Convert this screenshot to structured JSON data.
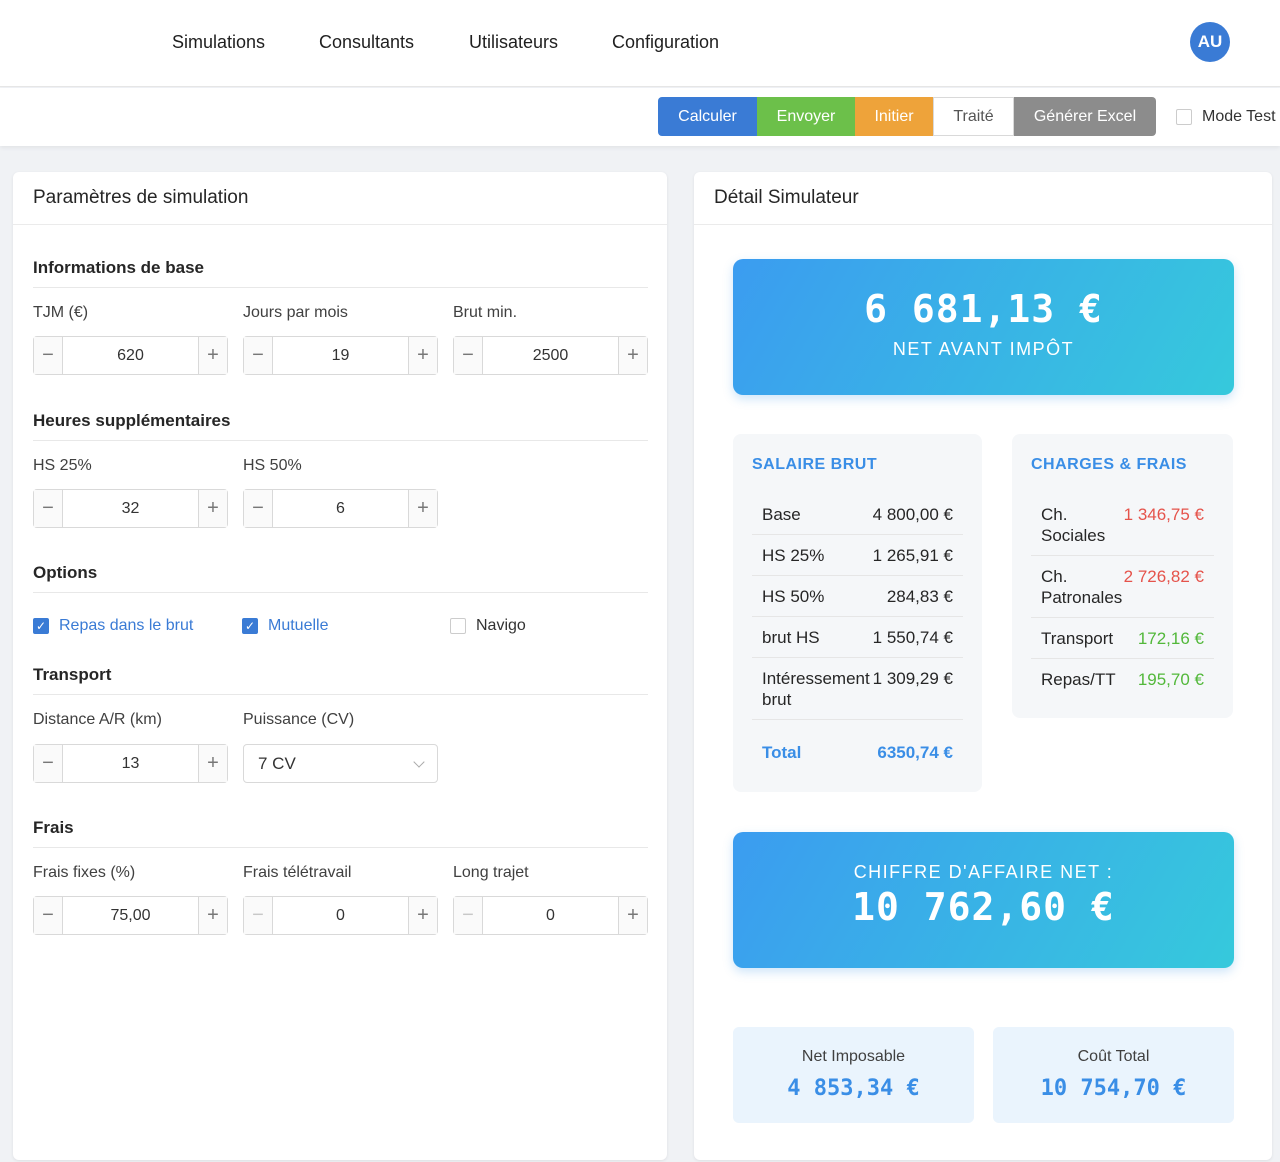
{
  "nav": {
    "items": [
      "Simulations",
      "Consultants",
      "Utilisateurs",
      "Configuration"
    ],
    "avatar": "AU"
  },
  "toolbar": {
    "calculer": "Calculer",
    "envoyer": "Envoyer",
    "initier": "Initier",
    "traite": "Traité",
    "excel": "Générer Excel",
    "mode_test": "Mode Test"
  },
  "params": {
    "title": "Paramètres de simulation",
    "base": {
      "title": "Informations de base",
      "tjm_label": "TJM (€)",
      "tjm": "620",
      "jours_label": "Jours par mois",
      "jours": "19",
      "brut_label": "Brut min.",
      "brut": "2500"
    },
    "hs": {
      "title": "Heures supplémentaires",
      "hs25_label": "HS 25%",
      "hs25": "32",
      "hs50_label": "HS 50%",
      "hs50": "6"
    },
    "options": {
      "title": "Options",
      "repas": "Repas dans le brut",
      "mutuelle": "Mutuelle",
      "navigo": "Navigo"
    },
    "transport": {
      "title": "Transport",
      "distance_label": "Distance A/R (km)",
      "distance": "13",
      "puissance_label": "Puissance (CV)",
      "puissance": "7 CV"
    },
    "frais": {
      "title": "Frais",
      "fixes_label": "Frais fixes (%)",
      "fixes": "75,00",
      "teletravail_label": "Frais télétravail",
      "teletravail": "0",
      "long_label": "Long trajet",
      "long": "0"
    }
  },
  "detail": {
    "title": "Détail Simulateur",
    "net_value": "6 681,13 €",
    "net_label": "NET AVANT IMPÔT",
    "brut": {
      "title": "SALAIRE BRUT",
      "rows": [
        {
          "label": "Base",
          "value": "4 800,00 €"
        },
        {
          "label": "HS 25%",
          "value": "1 265,91 €"
        },
        {
          "label": "HS 50%",
          "value": "284,83 €"
        },
        {
          "label": "brut HS",
          "value": "1 550,74 €"
        },
        {
          "label": "Intéressement brut",
          "value": "1 309,29 €"
        }
      ],
      "total_label": "Total",
      "total_value": "6350,74 €"
    },
    "charges": {
      "title": "CHARGES & FRAIS",
      "rows": [
        {
          "label": "Ch. Sociales",
          "value": "1 346,75 €"
        },
        {
          "label": "Ch. Patronales",
          "value": "2 726,82 €"
        },
        {
          "label": "Transport",
          "value": "172,16 €"
        },
        {
          "label": "Repas/TT",
          "value": "195,70 €"
        }
      ]
    },
    "ca_label": "CHIFFRE D'AFFAIRE NET :",
    "ca_value": "10 762,60 €",
    "net_imposable_label": "Net Imposable",
    "net_imposable": "4 853,34 €",
    "cout_total_label": "Coût Total",
    "cout_total": "10 754,70 €"
  }
}
